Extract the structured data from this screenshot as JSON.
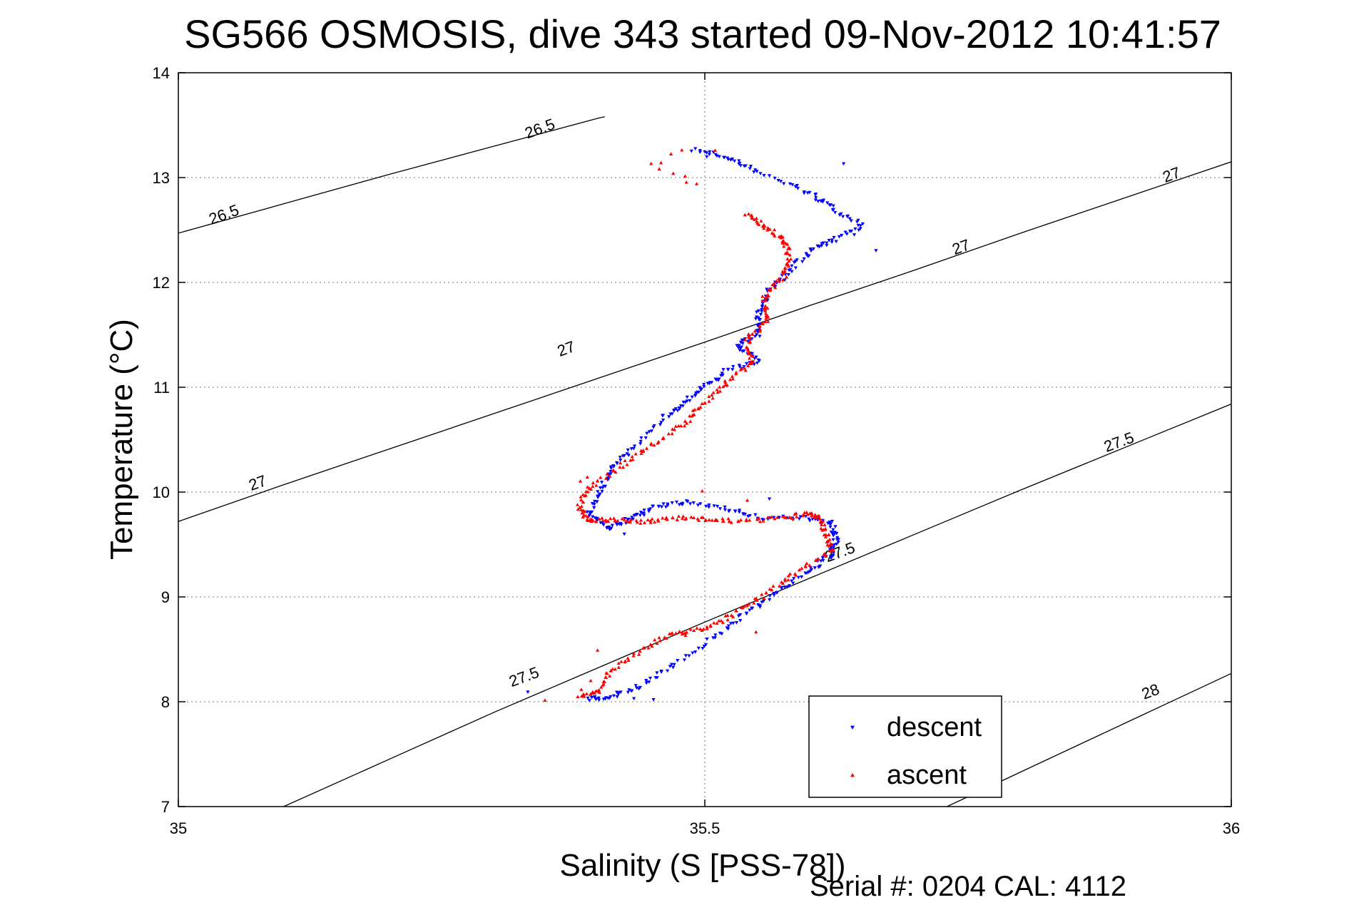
{
  "chart_data": {
    "type": "scatter",
    "title": "SG566 OSMOSIS, dive 343 started 09-Nov-2012 10:41:57",
    "xlabel": "Salinity (S [PSS-78])",
    "ylabel": "Temperature (°C)",
    "footer": "Serial #: 0204  CAL: 4112",
    "xlim": [
      35,
      36
    ],
    "ylim": [
      7,
      14
    ],
    "x_ticks": [
      35,
      35.5,
      36
    ],
    "x_tick_labels": [
      "35",
      "35.5",
      "36"
    ],
    "y_ticks": [
      7,
      8,
      9,
      10,
      11,
      12,
      13,
      14
    ],
    "y_tick_labels": [
      "7",
      "8",
      "9",
      "10",
      "11",
      "12",
      "13",
      "14"
    ],
    "grid": true,
    "legend_position": "lower-right",
    "colors": {
      "descent": "#0000ff",
      "ascent": "#ff0000",
      "contour": "#000000"
    },
    "density_contours": [
      {
        "label": "26.5",
        "points": [
          [
            35.0,
            12.47
          ],
          [
            35.1,
            12.75
          ],
          [
            35.2,
            13.03
          ],
          [
            35.3,
            13.3
          ],
          [
            35.4,
            13.57
          ],
          [
            35.4,
            13.57
          ],
          [
            35.405,
            13.58
          ]
        ]
      },
      {
        "label": "27",
        "points": [
          [
            35.0,
            9.72
          ],
          [
            35.1,
            10.07
          ],
          [
            35.2,
            10.41
          ],
          [
            35.3,
            10.75
          ],
          [
            35.4,
            11.09
          ],
          [
            35.5,
            11.43
          ],
          [
            35.6,
            11.78
          ],
          [
            35.7,
            12.12
          ],
          [
            35.8,
            12.47
          ],
          [
            35.9,
            12.81
          ],
          [
            36.0,
            13.15
          ]
        ]
      },
      {
        "label": "27.5",
        "points": [
          [
            35.1,
            7.0
          ],
          [
            35.2,
            7.45
          ],
          [
            35.3,
            7.9
          ],
          [
            35.4,
            8.33
          ],
          [
            35.5,
            8.76
          ],
          [
            35.6,
            9.18
          ],
          [
            35.7,
            9.6
          ],
          [
            35.8,
            10.02
          ],
          [
            35.9,
            10.43
          ],
          [
            36.0,
            10.84
          ]
        ]
      },
      {
        "label": "28",
        "points": [
          [
            35.73,
            7.0
          ],
          [
            35.8,
            7.33
          ],
          [
            35.9,
            7.8
          ],
          [
            36.0,
            8.27
          ]
        ]
      }
    ],
    "contour_labels": [
      {
        "text": "26.5",
        "x": 35.345,
        "y": 13.42
      },
      {
        "text": "26.5",
        "x": 35.045,
        "y": 12.6
      },
      {
        "text": "27",
        "x": 35.945,
        "y": 12.98
      },
      {
        "text": "27",
        "x": 35.745,
        "y": 12.29
      },
      {
        "text": "27",
        "x": 35.37,
        "y": 11.32
      },
      {
        "text": "27",
        "x": 35.077,
        "y": 10.04
      },
      {
        "text": "27.5",
        "x": 35.895,
        "y": 10.43
      },
      {
        "text": "27.5",
        "x": 35.63,
        "y": 9.38
      },
      {
        "text": "27.5",
        "x": 35.33,
        "y": 8.19
      },
      {
        "text": "28",
        "x": 35.925,
        "y": 8.05
      }
    ],
    "series": [
      {
        "name": "descent",
        "marker": "triangle-down",
        "color": "#0000ff",
        "path": [
          [
            35.49,
            13.27
          ],
          [
            35.52,
            13.19
          ],
          [
            35.55,
            13.05
          ],
          [
            35.6,
            12.85
          ],
          [
            35.62,
            12.72
          ],
          [
            35.65,
            12.55
          ],
          [
            35.62,
            12.4
          ],
          [
            35.6,
            12.3
          ],
          [
            35.58,
            12.1
          ],
          [
            35.56,
            11.9
          ],
          [
            35.55,
            11.7
          ],
          [
            35.55,
            11.5
          ],
          [
            35.53,
            11.4
          ],
          [
            35.55,
            11.25
          ],
          [
            35.52,
            11.15
          ],
          [
            35.5,
            11.0
          ],
          [
            35.48,
            10.85
          ],
          [
            35.46,
            10.7
          ],
          [
            35.43,
            10.4
          ],
          [
            35.41,
            10.2
          ],
          [
            35.4,
            10.0
          ],
          [
            35.39,
            9.8
          ],
          [
            35.41,
            9.65
          ],
          [
            35.43,
            9.75
          ],
          [
            35.45,
            9.85
          ],
          [
            35.48,
            9.9
          ],
          [
            35.52,
            9.85
          ],
          [
            35.55,
            9.75
          ],
          [
            35.6,
            9.75
          ],
          [
            35.62,
            9.7
          ],
          [
            35.625,
            9.55
          ],
          [
            35.62,
            9.4
          ],
          [
            35.6,
            9.25
          ],
          [
            35.57,
            9.05
          ],
          [
            35.54,
            8.85
          ],
          [
            35.51,
            8.62
          ],
          [
            35.47,
            8.35
          ],
          [
            35.44,
            8.15
          ],
          [
            35.41,
            8.05
          ],
          [
            35.39,
            8.02
          ]
        ],
        "extra_points": [
          [
            35.63,
            13.12
          ],
          [
            35.59,
            12.92
          ],
          [
            35.61,
            12.79
          ],
          [
            35.5,
            13.2
          ],
          [
            35.53,
            13.18
          ],
          [
            35.33,
            8.08
          ],
          [
            35.45,
            8.02
          ],
          [
            35.43,
            8.02
          ],
          [
            35.64,
            12.44
          ],
          [
            35.66,
            12.3
          ],
          [
            35.62,
            9.35
          ],
          [
            35.425,
            9.6
          ],
          [
            35.56,
            9.95
          ]
        ]
      },
      {
        "name": "ascent",
        "marker": "triangle-up",
        "color": "#ff0000",
        "path": [
          [
            35.38,
            8.05
          ],
          [
            35.4,
            8.1
          ],
          [
            35.41,
            8.3
          ],
          [
            35.44,
            8.5
          ],
          [
            35.47,
            8.65
          ],
          [
            35.5,
            8.7
          ],
          [
            35.53,
            8.85
          ],
          [
            35.56,
            9.05
          ],
          [
            35.59,
            9.25
          ],
          [
            35.62,
            9.45
          ],
          [
            35.615,
            9.6
          ],
          [
            35.61,
            9.75
          ],
          [
            35.6,
            9.8
          ],
          [
            35.57,
            9.75
          ],
          [
            35.53,
            9.72
          ],
          [
            35.5,
            9.75
          ],
          [
            35.47,
            9.75
          ],
          [
            35.44,
            9.72
          ],
          [
            35.41,
            9.74
          ],
          [
            35.39,
            9.73
          ],
          [
            35.38,
            9.85
          ],
          [
            35.39,
            10.05
          ],
          [
            35.42,
            10.25
          ],
          [
            35.45,
            10.45
          ],
          [
            35.48,
            10.65
          ],
          [
            35.5,
            10.85
          ],
          [
            35.52,
            11.05
          ],
          [
            35.545,
            11.25
          ],
          [
            35.54,
            11.45
          ],
          [
            35.56,
            11.65
          ],
          [
            35.555,
            11.85
          ],
          [
            35.575,
            12.05
          ],
          [
            35.58,
            12.25
          ],
          [
            35.575,
            12.4
          ],
          [
            35.555,
            12.55
          ],
          [
            35.54,
            12.65
          ]
        ],
        "extra_points": [
          [
            35.48,
            13.27
          ],
          [
            35.47,
            13.22
          ],
          [
            35.46,
            13.15
          ],
          [
            35.45,
            13.12
          ],
          [
            35.47,
            13.05
          ],
          [
            35.48,
            12.95
          ],
          [
            35.49,
            12.96
          ],
          [
            35.51,
            13.28
          ],
          [
            35.48,
            13.0
          ],
          [
            35.455,
            13.1
          ],
          [
            35.4,
            8.5
          ],
          [
            35.39,
            8.2
          ],
          [
            35.385,
            8.12
          ],
          [
            35.55,
            8.65
          ],
          [
            35.38,
            10.1
          ],
          [
            35.39,
            10.13
          ],
          [
            35.5,
            10.0
          ],
          [
            35.54,
            9.93
          ],
          [
            35.35,
            8.0
          ],
          [
            35.48,
            8.65
          ]
        ]
      }
    ]
  },
  "legend": {
    "entries": [
      "descent",
      "ascent"
    ]
  }
}
